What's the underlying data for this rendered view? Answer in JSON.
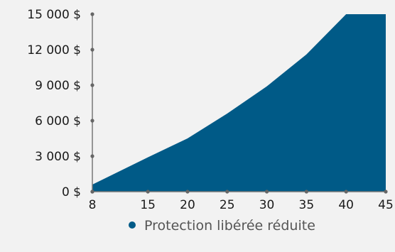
{
  "chart_data": {
    "type": "area",
    "title": "",
    "xlabel": "",
    "ylabel": "",
    "x": [
      8,
      15,
      20,
      25,
      30,
      35,
      40,
      45
    ],
    "xticks": [
      "8",
      "15",
      "20",
      "25",
      "30",
      "35",
      "40",
      "45"
    ],
    "yticks": [
      0,
      3000,
      6000,
      9000,
      12000,
      15000
    ],
    "ytick_labels": [
      "0 $",
      "3 000 $",
      "6 000 $",
      "9 000 $",
      "12 000 $",
      "15 000 $"
    ],
    "xlim": [
      8,
      45
    ],
    "ylim": [
      0,
      15000
    ],
    "grid": false,
    "legend_position": "bottom-center",
    "series": [
      {
        "name": "Protection libérée réduite",
        "color": "#005a87",
        "values": [
          600,
          2900,
          4500,
          6600,
          8900,
          11600,
          15000,
          15000
        ]
      }
    ]
  },
  "colors": {
    "background": "#f2f2f2",
    "axis": "#777777",
    "tick_dot": "#666666",
    "legend_dot": "#005a87"
  }
}
